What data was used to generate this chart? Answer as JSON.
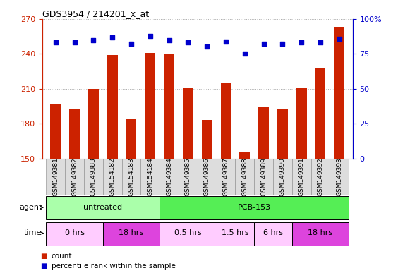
{
  "title": "GDS3954 / 214201_x_at",
  "samples": [
    "GSM149381",
    "GSM149382",
    "GSM149383",
    "GSM154182",
    "GSM154183",
    "GSM154184",
    "GSM149384",
    "GSM149385",
    "GSM149386",
    "GSM149387",
    "GSM149388",
    "GSM149389",
    "GSM149390",
    "GSM149391",
    "GSM149392",
    "GSM149393"
  ],
  "counts": [
    197,
    193,
    210,
    239,
    184,
    241,
    240,
    211,
    183,
    215,
    155,
    194,
    193,
    211,
    228,
    263
  ],
  "percentile_ranks": [
    83,
    83,
    85,
    87,
    82,
    88,
    85,
    83,
    80,
    84,
    75,
    82,
    82,
    83,
    83,
    86
  ],
  "ylim_left": [
    150,
    270
  ],
  "ylim_right": [
    0,
    100
  ],
  "yticks_left": [
    150,
    180,
    210,
    240,
    270
  ],
  "yticks_right": [
    0,
    25,
    50,
    75,
    100
  ],
  "bar_color": "#cc2200",
  "dot_color": "#0000cc",
  "agent_groups": [
    {
      "label": "untreated",
      "start": 0,
      "end": 6,
      "color": "#aaffaa"
    },
    {
      "label": "PCB-153",
      "start": 6,
      "end": 16,
      "color": "#55ee55"
    }
  ],
  "time_groups": [
    {
      "label": "0 hrs",
      "start": 0,
      "end": 3,
      "color": "#ffccff"
    },
    {
      "label": "18 hrs",
      "start": 3,
      "end": 6,
      "color": "#dd44dd"
    },
    {
      "label": "0.5 hrs",
      "start": 6,
      "end": 9,
      "color": "#ffccff"
    },
    {
      "label": "1.5 hrs",
      "start": 9,
      "end": 11,
      "color": "#ffccff"
    },
    {
      "label": "6 hrs",
      "start": 11,
      "end": 13,
      "color": "#ffccff"
    },
    {
      "label": "18 hrs",
      "start": 13,
      "end": 16,
      "color": "#dd44dd"
    }
  ],
  "grid_color": "#aaaaaa",
  "tick_label_color_left": "#cc2200",
  "tick_label_color_right": "#0000cc",
  "bar_width": 0.55,
  "sample_box_color": "#dddddd",
  "sample_box_edge": "#999999"
}
